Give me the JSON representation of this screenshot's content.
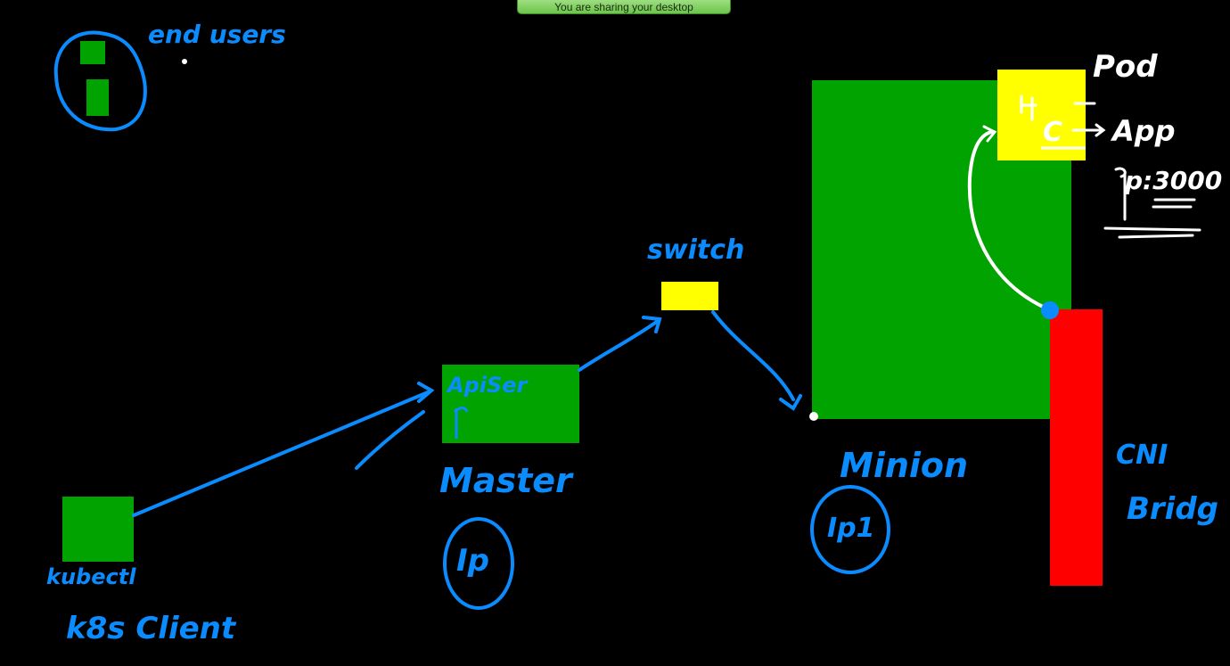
{
  "banner": {
    "text": "You are sharing your desktop"
  },
  "colors": {
    "background": "#000000",
    "node_green": "#00a300",
    "pod_yellow": "#ffff00",
    "bridge_red": "#ff0000",
    "ink_blue": "#0a8cff",
    "ink_white": "#ffffff"
  },
  "labels": {
    "end_users": "end users",
    "kubectl": "kubectl",
    "k8s_client": "k8s Client",
    "api_server": "ApiSer",
    "master": "Master",
    "master_ip": "Ip",
    "switch": "switch",
    "minion": "Minion",
    "minion_ip": "Ip1",
    "pod": "Pod",
    "pod_c": "C",
    "app": "App",
    "port": "p:3000",
    "cni": "CNI",
    "bridge": "Bridg"
  }
}
